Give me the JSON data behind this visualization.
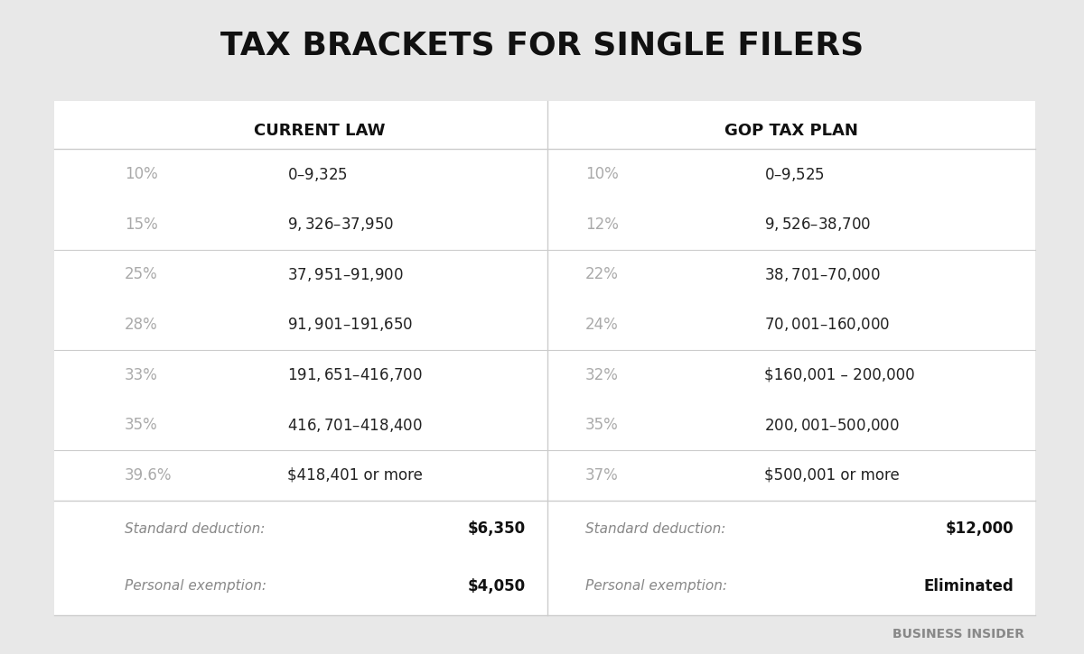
{
  "title": "TAX BRACKETS FOR SINGLE FILERS",
  "bg_color": "#e8e8e8",
  "table_bg": "#ffffff",
  "header_left": "CURRENT LAW",
  "header_right": "GOP TAX PLAN",
  "current_law": [
    [
      "10%",
      "$0 – $9,325"
    ],
    [
      "15%",
      "$9,326 – $37,950"
    ],
    [
      "25%",
      "$37,951 – $91,900"
    ],
    [
      "28%",
      "$91,901 – $191,650"
    ],
    [
      "33%",
      "$191,651 – $416,700"
    ],
    [
      "35%",
      "$416,701 – $418,400"
    ],
    [
      "39.6%",
      "$418,401 or more"
    ]
  ],
  "gop_plan": [
    [
      "10%",
      "$0 – $9,525"
    ],
    [
      "12%",
      "$9,526 – $38,700"
    ],
    [
      "22%",
      "$38,701 – $70,000"
    ],
    [
      "24%",
      "$70,001 – $160,000"
    ],
    [
      "32%",
      "$160,001 – 200,000"
    ],
    [
      "35%",
      "$200,001 – $500,000"
    ],
    [
      "37%",
      "$500,001 or more"
    ]
  ],
  "footer_current": [
    [
      "Standard deduction:",
      "$6,350"
    ],
    [
      "Personal exemption:",
      "$4,050"
    ]
  ],
  "footer_gop": [
    [
      "Standard deduction:",
      "$12,000"
    ],
    [
      "Personal exemption:",
      "Eliminated"
    ]
  ],
  "rate_color": "#aaaaaa",
  "range_color": "#222222",
  "footer_label_color": "#888888",
  "footer_value_color": "#111111",
  "header_color": "#111111",
  "divider_color": "#cccccc",
  "watermark": "BUSINESS INSIDER"
}
